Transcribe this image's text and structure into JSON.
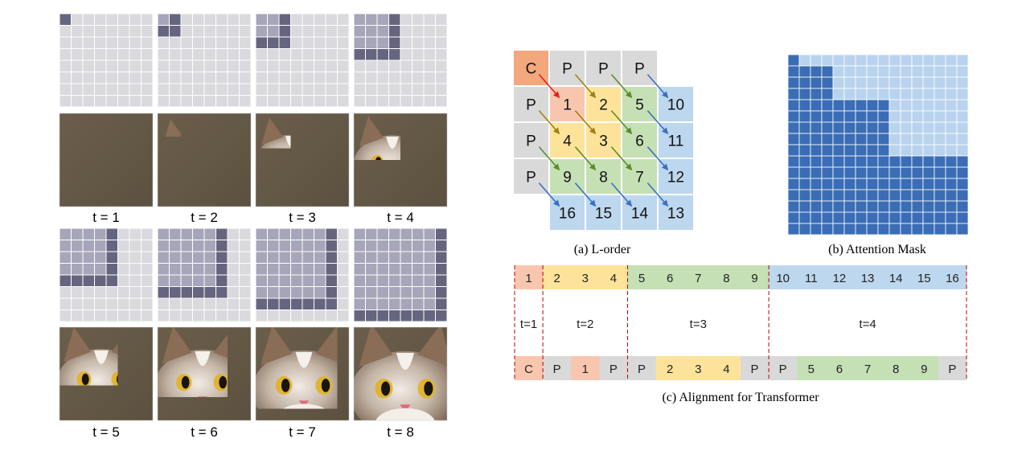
{
  "steps": {
    "labels": [
      "t = 1",
      "t = 2",
      "t = 3",
      "t = 4",
      "t = 5",
      "t = 6",
      "t = 7",
      "t = 8"
    ],
    "colors": {
      "light": "#d9d9de",
      "mid": "#a7a5b9",
      "dark": "#66657f",
      "grid": "#ffffff"
    }
  },
  "lorder": {
    "caption": "(a) L-order",
    "cells": [
      {
        "text": "C",
        "r": 0,
        "c": 0,
        "color": "#f3a77d"
      },
      {
        "text": "P",
        "r": 0,
        "c": 1,
        "color": "#d9d9d9"
      },
      {
        "text": "P",
        "r": 0,
        "c": 2,
        "color": "#d9d9d9"
      },
      {
        "text": "P",
        "r": 0,
        "c": 3,
        "color": "#d9d9d9"
      },
      {
        "text": "P",
        "r": 1,
        "c": 0,
        "color": "#d9d9d9"
      },
      {
        "text": "1",
        "r": 1,
        "c": 1,
        "color": "#f8c6ae"
      },
      {
        "text": "2",
        "r": 1,
        "c": 2,
        "color": "#fde39a"
      },
      {
        "text": "5",
        "r": 1,
        "c": 3,
        "color": "#c5e0b4"
      },
      {
        "text": "10",
        "r": 1,
        "c": 4,
        "color": "#bdd7ee"
      },
      {
        "text": "P",
        "r": 2,
        "c": 0,
        "color": "#d9d9d9"
      },
      {
        "text": "4",
        "r": 2,
        "c": 1,
        "color": "#fde39a"
      },
      {
        "text": "3",
        "r": 2,
        "c": 2,
        "color": "#fde39a"
      },
      {
        "text": "6",
        "r": 2,
        "c": 3,
        "color": "#c5e0b4"
      },
      {
        "text": "11",
        "r": 2,
        "c": 4,
        "color": "#bdd7ee"
      },
      {
        "text": "P",
        "r": 3,
        "c": 0,
        "color": "#d9d9d9"
      },
      {
        "text": "9",
        "r": 3,
        "c": 1,
        "color": "#c5e0b4"
      },
      {
        "text": "8",
        "r": 3,
        "c": 2,
        "color": "#c5e0b4"
      },
      {
        "text": "7",
        "r": 3,
        "c": 3,
        "color": "#c5e0b4"
      },
      {
        "text": "12",
        "r": 3,
        "c": 4,
        "color": "#bdd7ee"
      },
      {
        "text": "16",
        "r": 4,
        "c": 1,
        "color": "#bdd7ee"
      },
      {
        "text": "15",
        "r": 4,
        "c": 2,
        "color": "#bdd7ee"
      },
      {
        "text": "14",
        "r": 4,
        "c": 3,
        "color": "#bdd7ee"
      },
      {
        "text": "13",
        "r": 4,
        "c": 4,
        "color": "#bdd7ee"
      }
    ],
    "arrow_colors": {
      "red": "#e02020",
      "olive": "#a08010",
      "green": "#5a8a2a",
      "blue": "#3a70c0"
    }
  },
  "mask": {
    "caption": "(b) Attention Mask",
    "size": 16,
    "group_bounds": [
      1,
      4,
      9,
      16
    ],
    "colors": {
      "on": "#3a6db5",
      "off": "#b9d3ee"
    }
  },
  "alignment": {
    "caption": "(c) Alignment for Transformer",
    "top_row": [
      {
        "text": "1",
        "color": "#f8c6ae"
      },
      {
        "text": "2",
        "color": "#fde39a"
      },
      {
        "text": "3",
        "color": "#fde39a"
      },
      {
        "text": "4",
        "color": "#fde39a"
      },
      {
        "text": "5",
        "color": "#c5e0b4"
      },
      {
        "text": "6",
        "color": "#c5e0b4"
      },
      {
        "text": "7",
        "color": "#c5e0b4"
      },
      {
        "text": "8",
        "color": "#c5e0b4"
      },
      {
        "text": "9",
        "color": "#c5e0b4"
      },
      {
        "text": "10",
        "color": "#bdd7ee"
      },
      {
        "text": "11",
        "color": "#bdd7ee"
      },
      {
        "text": "12",
        "color": "#bdd7ee"
      },
      {
        "text": "13",
        "color": "#bdd7ee"
      },
      {
        "text": "14",
        "color": "#bdd7ee"
      },
      {
        "text": "15",
        "color": "#bdd7ee"
      },
      {
        "text": "16",
        "color": "#bdd7ee"
      }
    ],
    "bottom_row": [
      {
        "text": "C",
        "color": "#f8c6ae"
      },
      {
        "text": "P",
        "color": "#d9d9d9"
      },
      {
        "text": "1",
        "color": "#f8c6ae"
      },
      {
        "text": "P",
        "color": "#d9d9d9"
      },
      {
        "text": "P",
        "color": "#d9d9d9"
      },
      {
        "text": "2",
        "color": "#fde39a"
      },
      {
        "text": "3",
        "color": "#fde39a"
      },
      {
        "text": "4",
        "color": "#fde39a"
      },
      {
        "text": "P",
        "color": "#d9d9d9"
      },
      {
        "text": "P",
        "color": "#d9d9d9"
      },
      {
        "text": "5",
        "color": "#c5e0b4"
      },
      {
        "text": "6",
        "color": "#c5e0b4"
      },
      {
        "text": "7",
        "color": "#c5e0b4"
      },
      {
        "text": "8",
        "color": "#c5e0b4"
      },
      {
        "text": "9",
        "color": "#c5e0b4"
      },
      {
        "text": "P",
        "color": "#d9d9d9"
      }
    ],
    "groups": [
      "t=1",
      "t=2",
      "t=3",
      "t=4"
    ],
    "divider_color": "#c00000"
  }
}
